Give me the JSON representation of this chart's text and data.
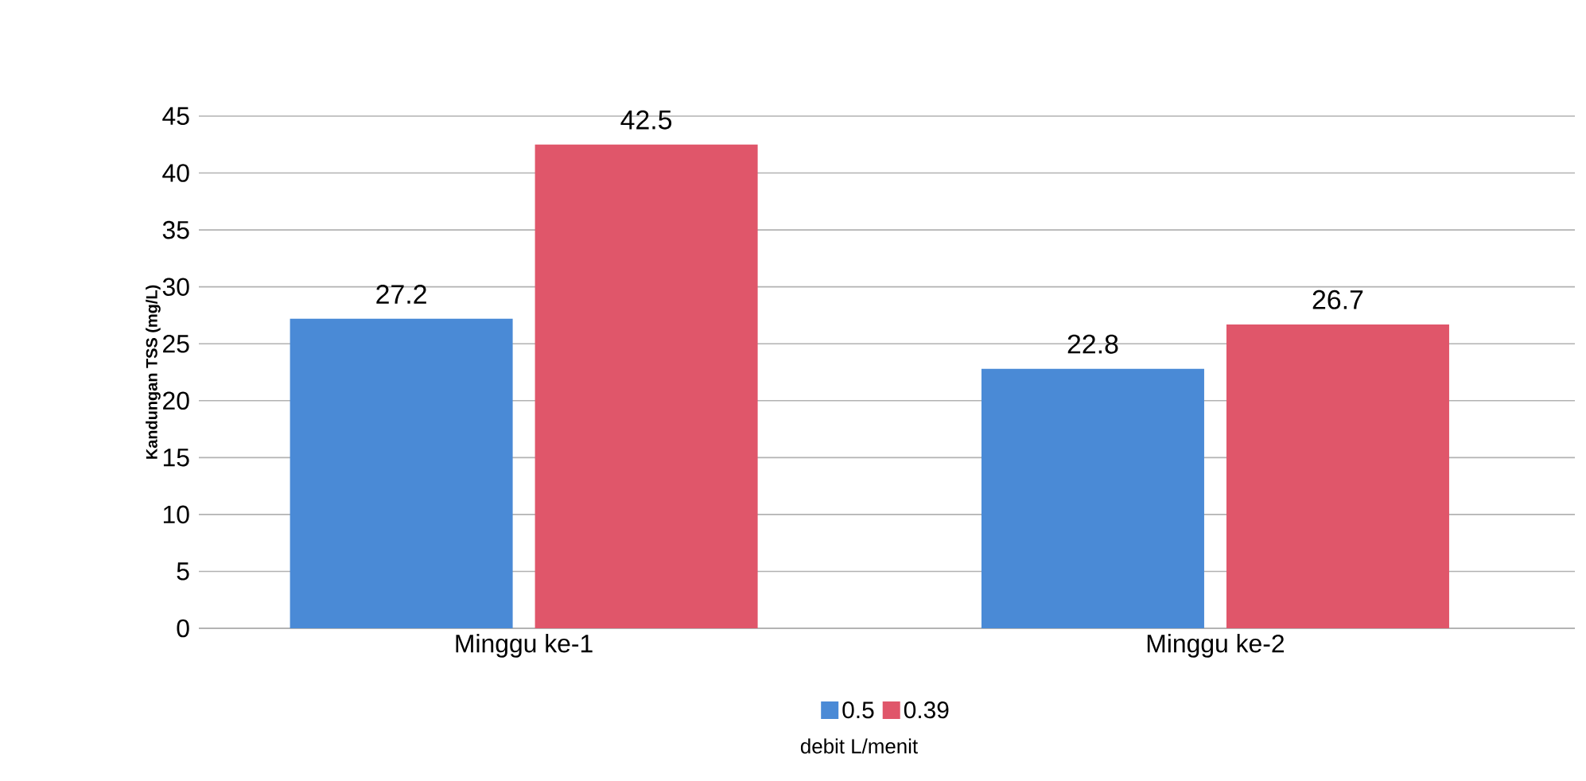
{
  "chart_data": {
    "type": "bar",
    "ylabel": "Kandungan TSS (mg/L)",
    "legend_title": "debit L/menit",
    "categories": [
      "Minggu ke-1",
      "Minggu ke-2"
    ],
    "series": [
      {
        "name": "0.5",
        "color": "#4a8ad6",
        "values": [
          27.2,
          22.8
        ]
      },
      {
        "name": "0.39",
        "color": "#e0566a",
        "values": [
          42.5,
          26.7
        ]
      }
    ],
    "ylim": [
      0,
      45
    ],
    "yticks": [
      0,
      5,
      10,
      15,
      20,
      25,
      30,
      35,
      40,
      45
    ],
    "grid": "y",
    "legend": "bottom",
    "data_labels": true
  }
}
